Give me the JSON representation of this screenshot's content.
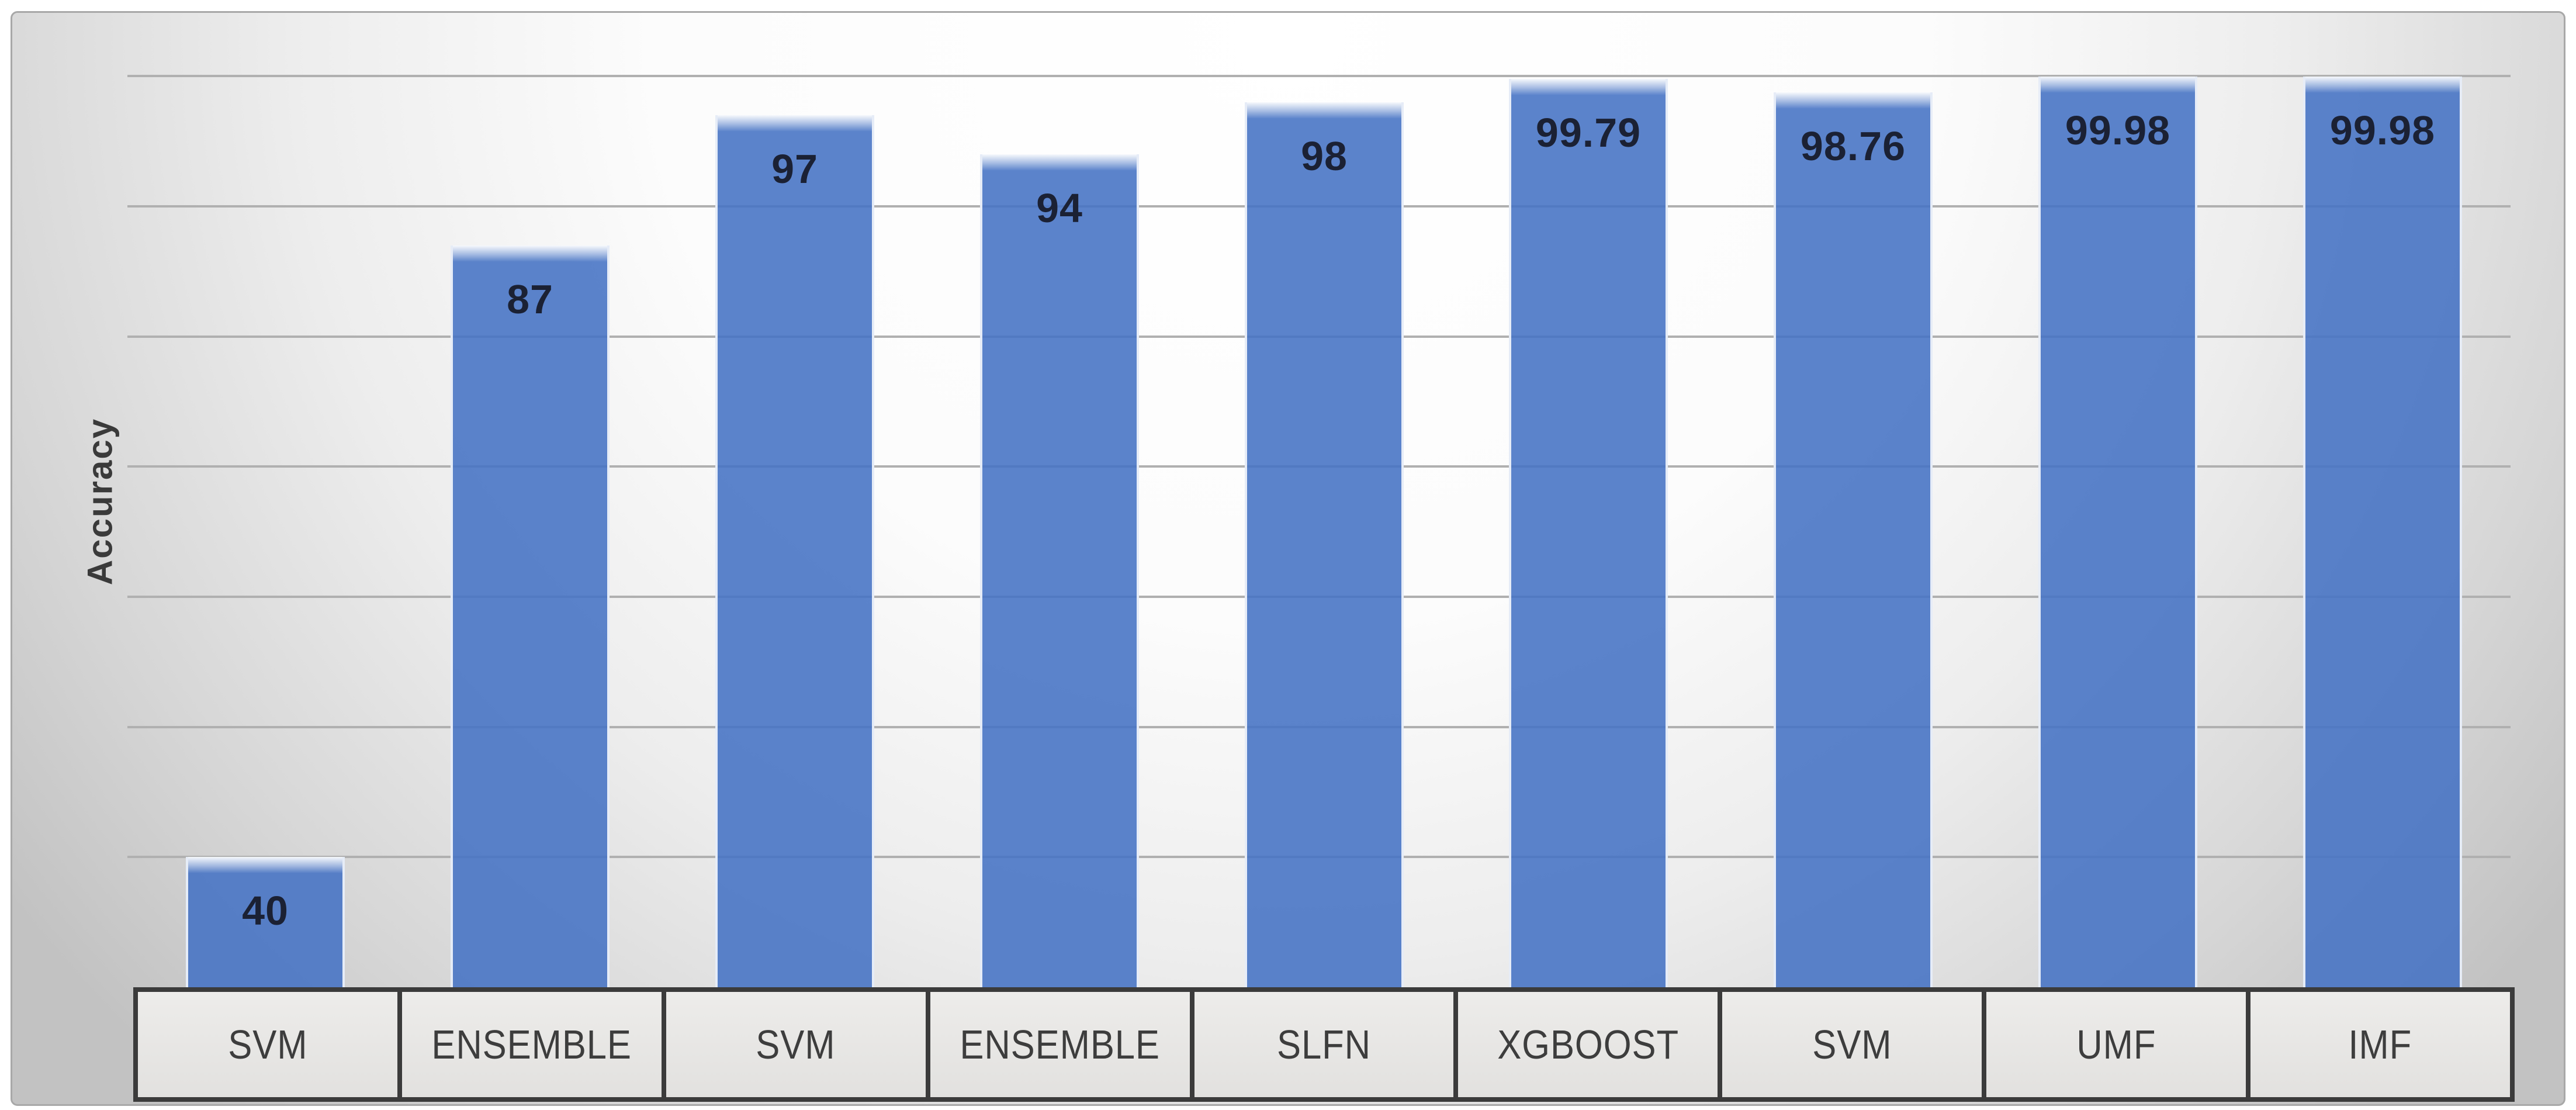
{
  "chart_data": {
    "type": "bar",
    "title": "",
    "xlabel": "",
    "ylabel": "Accuracy",
    "categories": [
      "SVM",
      "ENSEMBLE",
      "SVM",
      "ENSEMBLE",
      "SLFN",
      "XGBOOST",
      "SVM",
      "UMF",
      "IMF"
    ],
    "values": [
      40,
      87,
      97,
      94,
      98,
      99.79,
      98.76,
      99.98,
      99.98
    ],
    "value_labels": [
      "40",
      "87",
      "97",
      "94",
      "98",
      "99.79",
      "98.76",
      "99.98",
      "99.98"
    ],
    "ylim": [
      30,
      100
    ],
    "gridline_step": 10,
    "grid": true,
    "y_tick_labels_shown": false,
    "legend_position": "none",
    "colors": {
      "bar": "#4472C4",
      "bar_rendered": "#5B84CB",
      "gridline": "#B0B0B0",
      "table_border": "#3B3B3B",
      "table_cell_bg": "#E7E6E4",
      "value_label": "#1B2134",
      "category_label": "#3D3D3D",
      "axis_title": "#3A3A3A",
      "figure_border": "#A8A8A8"
    }
  }
}
